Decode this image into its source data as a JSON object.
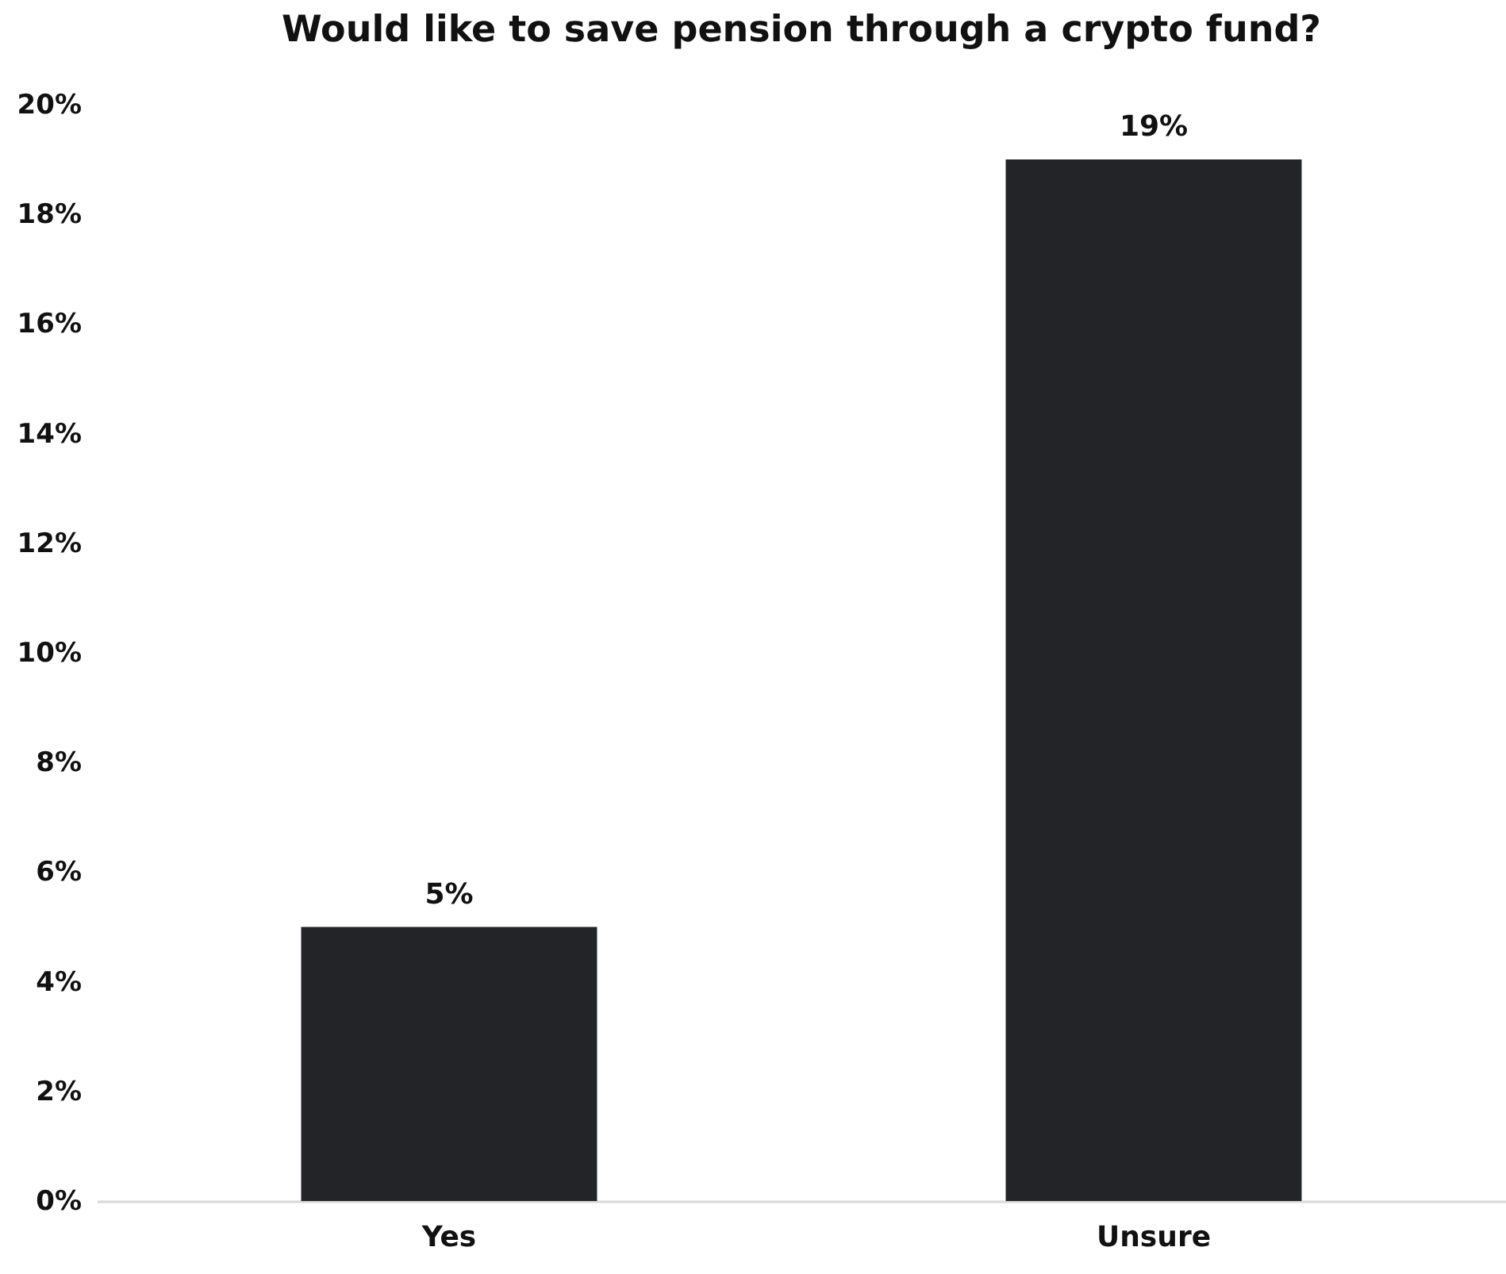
{
  "chart_data": {
    "type": "bar",
    "title": "Would like to save pension through a crypto fund?",
    "categories": [
      "Yes",
      "Unsure"
    ],
    "values": [
      5,
      19
    ],
    "value_labels": [
      "5%",
      "19%"
    ],
    "color": "#222428",
    "ylim": [
      0,
      20
    ],
    "yticks": [
      {
        "value": 0,
        "label": "0%"
      },
      {
        "value": 2,
        "label": "2%"
      },
      {
        "value": 4,
        "label": "4%"
      },
      {
        "value": 6,
        "label": "6%"
      },
      {
        "value": 8,
        "label": "8%"
      },
      {
        "value": 10,
        "label": "10%"
      },
      {
        "value": 12,
        "label": "12%"
      },
      {
        "value": 14,
        "label": "14%"
      },
      {
        "value": 16,
        "label": "16%"
      },
      {
        "value": 18,
        "label": "18%"
      },
      {
        "value": 20,
        "label": "20%"
      }
    ],
    "grid": false
  }
}
